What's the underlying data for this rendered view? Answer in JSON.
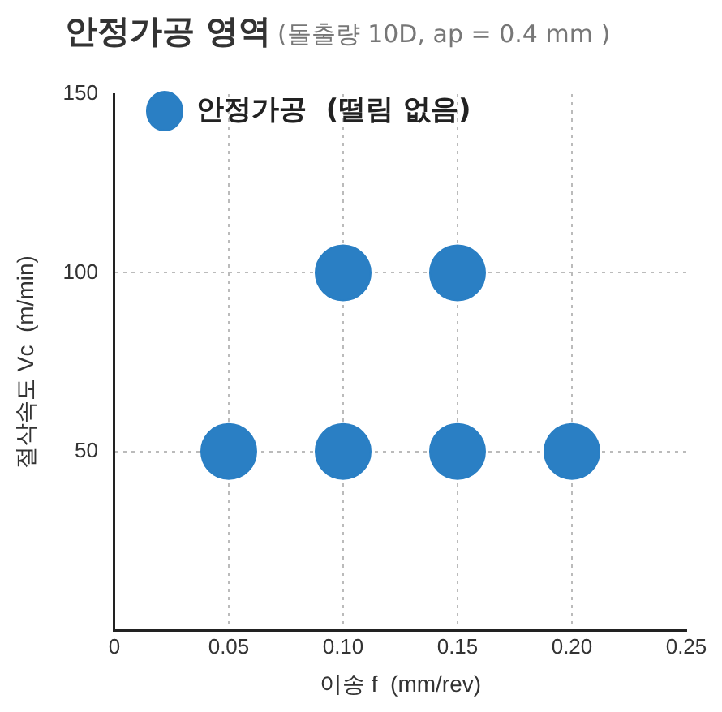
{
  "chart_data": {
    "type": "scatter",
    "title": "안정가공 영역",
    "subtitle": "(돌출량 10D, ap = 0.4 mm )",
    "xlabel": "이송 f  (mm/rev)",
    "ylabel": "절삭속도 Vc  (m/min)",
    "series": [
      {
        "name": "안정가공  (떨림 없음)",
        "color": "#2a7fc4",
        "x": [
          0.05,
          0.1,
          0.15,
          0.2,
          0.1,
          0.15
        ],
        "values": [
          50,
          50,
          50,
          50,
          100,
          100
        ]
      }
    ],
    "xlim": [
      0,
      0.25
    ],
    "xticks": [
      0,
      0.05,
      {
        "value": 0.1,
        "label": "0.10"
      },
      0.15,
      {
        "value": 0.2,
        "label": "0.20"
      },
      0.25
    ],
    "ylim": [
      0,
      150
    ],
    "yticks": [
      {
        "value": 0,
        "label": null
      },
      50,
      100,
      150
    ],
    "grid": true,
    "legend": "top left",
    "marker": "circle"
  }
}
